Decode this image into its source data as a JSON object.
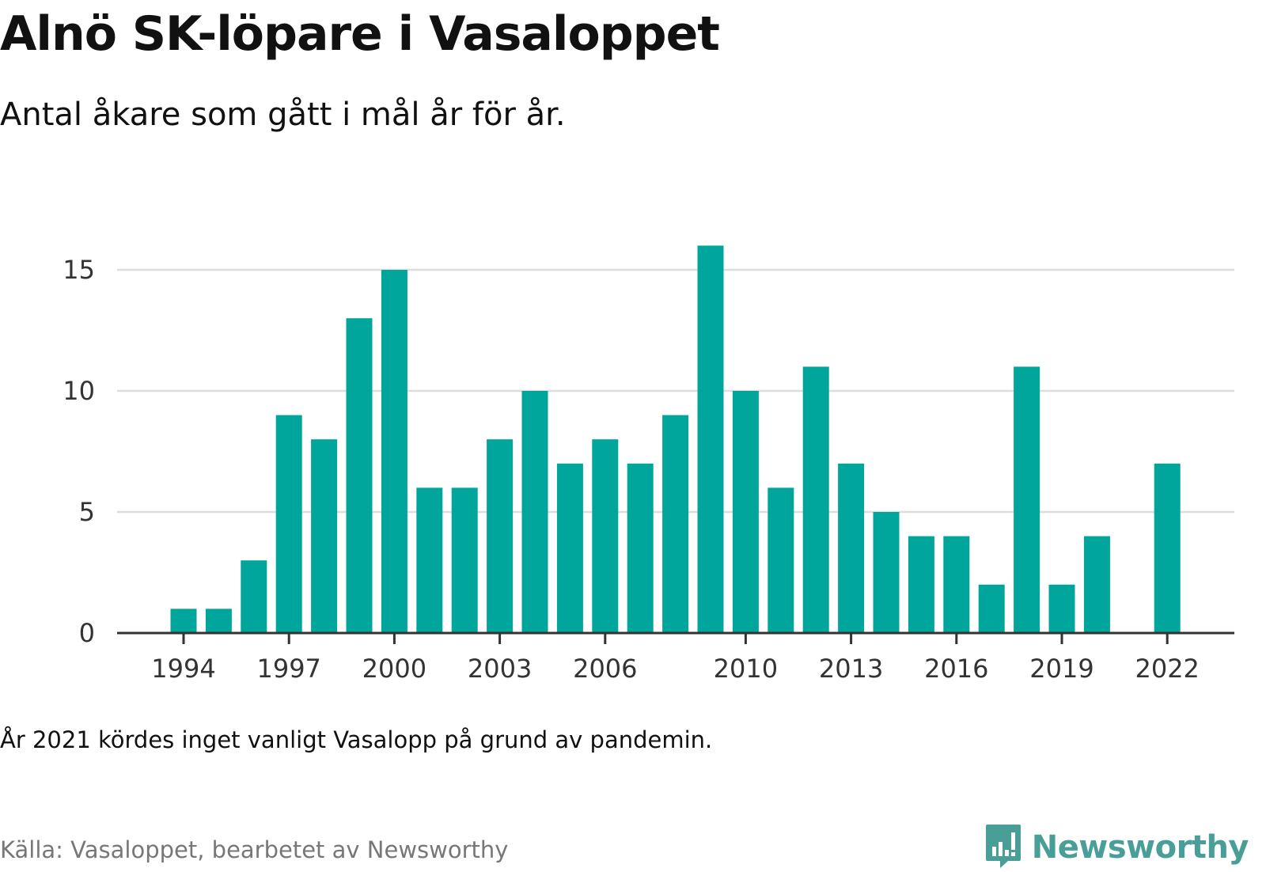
{
  "title": "Alnö SK-löpare i Vasaloppet",
  "subtitle": "Antal åkare som gått i mål år för år.",
  "note": "År 2021 kördes inget vanligt Vasalopp på grund av pandemin.",
  "source": "Källa: Vasaloppet, bearbetet av Newsworthy",
  "brand": {
    "name": "Newsworthy",
    "icon": "newsworthy-logo-icon"
  },
  "colors": {
    "bar": "#00a59b",
    "grid": "#dddddd",
    "axis": "#333333",
    "brand": "#4a9e98"
  },
  "chart_data": {
    "type": "bar",
    "title": "Alnö SK-löpare i Vasaloppet",
    "subtitle": "Antal åkare som gått i mål år för år.",
    "xlabel": "",
    "ylabel": "",
    "x": [
      1994,
      1995,
      1996,
      1997,
      1998,
      1999,
      2000,
      2001,
      2002,
      2003,
      2004,
      2005,
      2006,
      2007,
      2008,
      2009,
      2010,
      2011,
      2012,
      2013,
      2014,
      2015,
      2016,
      2017,
      2018,
      2019,
      2020,
      2021,
      2022
    ],
    "values": [
      1,
      1,
      3,
      9,
      8,
      13,
      15,
      6,
      6,
      8,
      10,
      7,
      8,
      7,
      9,
      16,
      10,
      6,
      11,
      7,
      5,
      4,
      4,
      2,
      11,
      2,
      4,
      null,
      7
    ],
    "x_ticks": [
      "1994",
      "1997",
      "2000",
      "2003",
      "2006",
      "2010",
      "2013",
      "2016",
      "2019",
      "2022"
    ],
    "y_ticks": [
      "0",
      "5",
      "10",
      "15"
    ],
    "ylim": [
      0,
      16
    ],
    "grid": true,
    "legend": "none"
  }
}
